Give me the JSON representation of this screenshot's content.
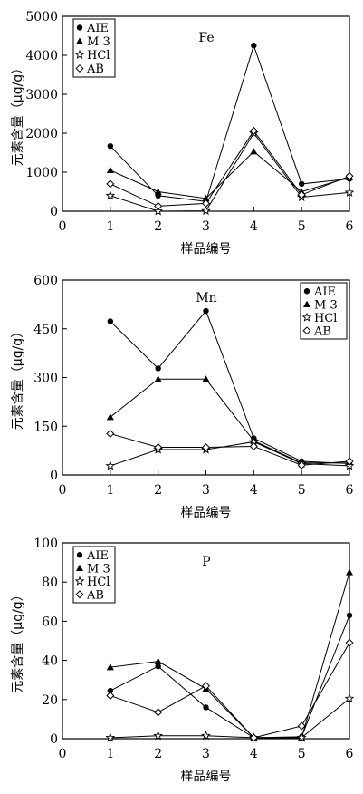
{
  "chart_data": [
    {
      "type": "line",
      "element_label": "Fe",
      "xlabel": "样品编号",
      "ylabel": "元素含量（μg/g）",
      "xlim": [
        0,
        6
      ],
      "ylim": [
        0,
        5000
      ],
      "x_ticks": [
        0,
        1,
        2,
        3,
        4,
        5,
        6
      ],
      "y_ticks": [
        0,
        1000,
        2000,
        3000,
        4000,
        5000
      ],
      "x": [
        1,
        2,
        3,
        4,
        5,
        6
      ],
      "legend_position": "top-left",
      "grid": false,
      "series": [
        {
          "name": "AIE",
          "marker": "filled-circle",
          "values": [
            1670,
            400,
            250,
            4250,
            700,
            830
          ]
        },
        {
          "name": "M 3",
          "marker": "filled-triangle",
          "values": [
            1050,
            500,
            330,
            1530,
            500,
            870
          ]
        },
        {
          "name": "HCl",
          "marker": "star",
          "values": [
            400,
            0,
            10,
            2000,
            360,
            480
          ]
        },
        {
          "name": "AB",
          "marker": "open-diamond",
          "values": [
            700,
            130,
            200,
            2060,
            420,
            900
          ]
        }
      ]
    },
    {
      "type": "line",
      "element_label": "Mn",
      "xlabel": "样品编号",
      "ylabel": "元素含量（μg/g）",
      "xlim": [
        0,
        6
      ],
      "ylim": [
        0,
        600
      ],
      "x_ticks": [
        0,
        1,
        2,
        3,
        4,
        5,
        6
      ],
      "y_ticks": [
        0,
        150,
        300,
        450,
        600
      ],
      "x": [
        1,
        2,
        3,
        4,
        5,
        6
      ],
      "legend_position": "top-right",
      "grid": false,
      "series": [
        {
          "name": "AIE",
          "marker": "filled-circle",
          "values": [
            473,
            328,
            505,
            113,
            42,
            35
          ]
        },
        {
          "name": "M 3",
          "marker": "filled-triangle",
          "values": [
            178,
            295,
            295,
            105,
            37,
            37
          ]
        },
        {
          "name": "HCl",
          "marker": "star",
          "values": [
            28,
            78,
            78,
            102,
            35,
            28
          ]
        },
        {
          "name": "AB",
          "marker": "open-diamond",
          "values": [
            127,
            85,
            85,
            88,
            30,
            42
          ]
        }
      ]
    },
    {
      "type": "line",
      "element_label": "P",
      "xlabel": "样品编号",
      "ylabel": "元素含量（μg/g）",
      "xlim": [
        0,
        6
      ],
      "ylim": [
        0,
        100
      ],
      "x_ticks": [
        0,
        1,
        2,
        3,
        4,
        5,
        6
      ],
      "y_ticks": [
        0,
        20,
        40,
        60,
        80,
        100
      ],
      "x": [
        1,
        2,
        3,
        4,
        5,
        6
      ],
      "legend_position": "top-left",
      "grid": false,
      "series": [
        {
          "name": "AIE",
          "marker": "filled-circle",
          "values": [
            24.5,
            37,
            16,
            0.5,
            1,
            63
          ]
        },
        {
          "name": "M 3",
          "marker": "filled-triangle",
          "values": [
            36.5,
            39.5,
            25.5,
            0.5,
            0.5,
            85
          ]
        },
        {
          "name": "HCl",
          "marker": "star",
          "values": [
            0.5,
            1.5,
            1.5,
            0.5,
            0.5,
            20.5
          ]
        },
        {
          "name": "AB",
          "marker": "open-diamond",
          "values": [
            22,
            13.5,
            27,
            0.5,
            6.5,
            49
          ]
        }
      ]
    }
  ]
}
